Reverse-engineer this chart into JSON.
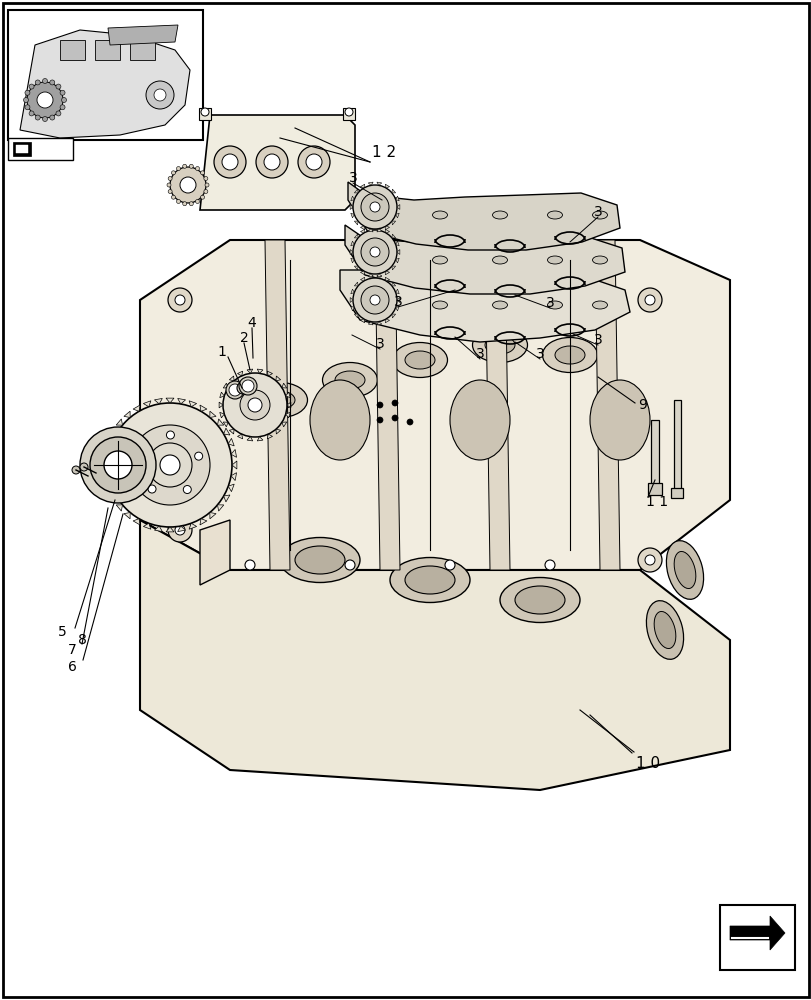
{
  "bg_color": "#ffffff",
  "border_color": "#000000",
  "line_color": "#000000",
  "figure_width": 8.12,
  "figure_height": 10.0,
  "dpi": 100
}
